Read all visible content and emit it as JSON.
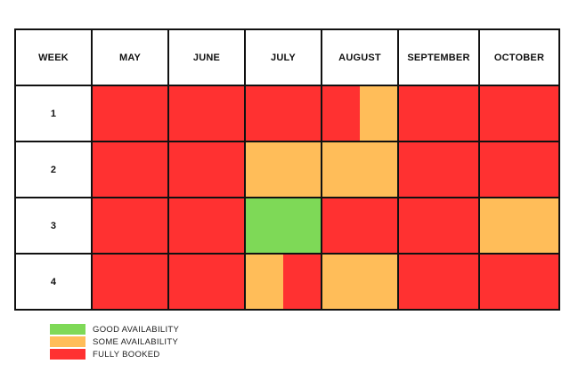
{
  "colors": {
    "good": "#7ed957",
    "some": "#ffbd59",
    "booked": "#ff3131",
    "border": "#111111",
    "blank": "#ffffff"
  },
  "table": {
    "corner_label": "WEEK",
    "months": [
      "MAY",
      "JUNE",
      "JULY",
      "AUGUST",
      "SEPTEMBER",
      "OCTOBER"
    ],
    "rows": [
      {
        "week": "1",
        "cells": [
          [
            "booked"
          ],
          [
            "booked"
          ],
          [
            "booked"
          ],
          [
            "booked",
            "some"
          ],
          [
            "booked"
          ],
          [
            "booked"
          ]
        ]
      },
      {
        "week": "2",
        "cells": [
          [
            "booked"
          ],
          [
            "booked"
          ],
          [
            "some"
          ],
          [
            "some"
          ],
          [
            "booked"
          ],
          [
            "booked"
          ]
        ]
      },
      {
        "week": "3",
        "cells": [
          [
            "booked"
          ],
          [
            "booked"
          ],
          [
            "good"
          ],
          [
            "booked"
          ],
          [
            "booked"
          ],
          [
            "some"
          ]
        ]
      },
      {
        "week": "4",
        "cells": [
          [
            "booked"
          ],
          [
            "booked"
          ],
          [
            "some",
            "booked"
          ],
          [
            "some"
          ],
          [
            "booked"
          ],
          [
            "booked"
          ]
        ]
      }
    ]
  },
  "legend": [
    {
      "status": "good",
      "label": "GOOD AVAILABILITY"
    },
    {
      "status": "some",
      "label": "SOME AVAILABILITY"
    },
    {
      "status": "booked",
      "label": "FULLY BOOKED"
    }
  ]
}
